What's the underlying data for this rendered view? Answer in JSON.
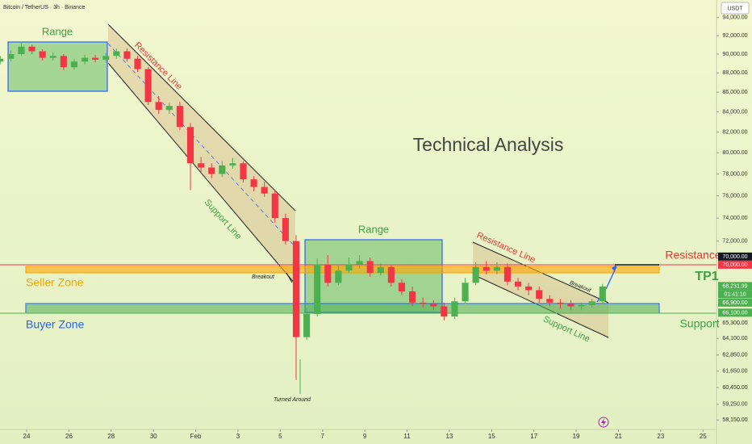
{
  "chart_data": {
    "type": "candlestick",
    "title": "Bitcoin / TetherUS · 3h · Binance",
    "currency": "USDT",
    "log_scale": true,
    "up_color": "#4caf50",
    "down_color": "#f23645",
    "ylim": [
      57500,
      96000
    ],
    "yticks": [
      {
        "value": 94000,
        "label": "94,000.00"
      },
      {
        "value": 92000,
        "label": "92,000.00"
      },
      {
        "value": 90000,
        "label": "90,000.00"
      },
      {
        "value": 88000,
        "label": "88,000.00"
      },
      {
        "value": 86000,
        "label": "86,000.00"
      },
      {
        "value": 84000,
        "label": "84,000.00"
      },
      {
        "value": 82000,
        "label": "82,000.00"
      },
      {
        "value": 80000,
        "label": "80,000.00"
      },
      {
        "value": 78000,
        "label": "78,000.00"
      },
      {
        "value": 76000,
        "label": "76,000.00"
      },
      {
        "value": 74000,
        "label": "74,000.00"
      },
      {
        "value": 72000,
        "label": "72,000.00"
      },
      {
        "value": 65300,
        "label": "65,300.00"
      },
      {
        "value": 64100,
        "label": "64,100.00"
      },
      {
        "value": 62850,
        "label": "62,850.00"
      },
      {
        "value": 61650,
        "label": "61,650.00"
      },
      {
        "value": 60450,
        "label": "60,450.00"
      },
      {
        "value": 59250,
        "label": "59,250.00"
      },
      {
        "value": 58150,
        "label": "58,150.00"
      }
    ],
    "xlim": [
      22.74,
      56.64
    ],
    "xticks": [
      24,
      26,
      28,
      30,
      {
        "value": 32,
        "label": "Feb"
      },
      {
        "value": 34,
        "label": "3"
      },
      {
        "value": 36,
        "label": "5"
      },
      {
        "value": 38,
        "label": "7"
      },
      {
        "value": 40,
        "label": "9"
      },
      {
        "value": 42,
        "label": "11"
      },
      {
        "value": 44,
        "label": "13"
      },
      {
        "value": 46,
        "label": "15"
      },
      {
        "value": 48,
        "label": "17"
      },
      {
        "value": 50,
        "label": "19"
      },
      {
        "value": 52,
        "label": "21"
      },
      {
        "value": 54,
        "label": "23"
      },
      {
        "value": 56,
        "label": "25"
      }
    ],
    "x": [
      22.75,
      23.25,
      23.75,
      24.25,
      24.75,
      25.25,
      25.75,
      26.25,
      26.75,
      27.25,
      27.75,
      28.25,
      28.75,
      29.25,
      29.75,
      30.25,
      30.75,
      31.25,
      31.75,
      32.25,
      32.75,
      33.25,
      33.75,
      34.25,
      34.75,
      35.25,
      35.75,
      36.25,
      36.75,
      37.25,
      37.75,
      38.25,
      38.75,
      39.25,
      39.75,
      40.25,
      40.75,
      41.25,
      41.75,
      42.25,
      42.75,
      43.25,
      43.75,
      44.25,
      44.75,
      45.25,
      45.75,
      46.25,
      46.75,
      47.25,
      47.75,
      48.25,
      48.75,
      49.25,
      49.75,
      50.25,
      50.75,
      51.25
    ],
    "open": [
      89200,
      89500,
      90000,
      90800,
      90300,
      89600,
      89800,
      88600,
      89200,
      89600,
      89400,
      89800,
      90300,
      89500,
      88400,
      85000,
      84200,
      84600,
      82500,
      79000,
      78600,
      78000,
      78800,
      79000,
      77500,
      76800,
      76200,
      74000,
      72000,
      64200,
      66000,
      70000,
      68500,
      69500,
      70000,
      70300,
      69300,
      69800,
      68500,
      67800,
      66900,
      66800,
      66600,
      65800,
      67000,
      68500,
      69800,
      69500,
      69800,
      68600,
      68200,
      67900,
      67200,
      66900,
      66800,
      66600,
      66700,
      67000
    ],
    "high": [
      89800,
      90400,
      91300,
      91000,
      90500,
      90200,
      90000,
      89500,
      89900,
      89900,
      90100,
      90600,
      90600,
      89800,
      88600,
      85600,
      84900,
      85000,
      82900,
      79600,
      79000,
      79200,
      79500,
      79200,
      77800,
      77300,
      76500,
      74400,
      72500,
      66500,
      70500,
      70800,
      70000,
      70600,
      70800,
      70600,
      70100,
      70000,
      68800,
      68200,
      67300,
      67100,
      66900,
      67300,
      68900,
      70200,
      70300,
      70200,
      70100,
      68900,
      68500,
      68200,
      67500,
      67200,
      67100,
      66900,
      67200,
      68400
    ],
    "low": [
      88900,
      89200,
      89800,
      90000,
      89300,
      89300,
      88300,
      88300,
      88900,
      89100,
      89100,
      89500,
      89200,
      88100,
      84700,
      83800,
      83800,
      82200,
      76500,
      78200,
      77600,
      77700,
      78500,
      77200,
      76400,
      75900,
      73600,
      71700,
      61000,
      64000,
      65800,
      68200,
      68300,
      69300,
      69700,
      69000,
      69100,
      68200,
      67500,
      66600,
      66500,
      66300,
      65500,
      65600,
      66800,
      68300,
      69200,
      69200,
      68300,
      67900,
      67500,
      66900,
      66600,
      66400,
      66300,
      66300,
      66500,
      66800
    ],
    "close": [
      89500,
      90000,
      90800,
      90300,
      89600,
      89800,
      88600,
      89200,
      89600,
      89400,
      89800,
      90300,
      89500,
      88400,
      85000,
      84200,
      84600,
      82500,
      79000,
      78600,
      78000,
      78800,
      79000,
      77500,
      76800,
      76200,
      74000,
      72000,
      64200,
      66000,
      70000,
      68500,
      69500,
      70000,
      70300,
      69300,
      69800,
      68500,
      67800,
      66900,
      66800,
      66600,
      65800,
      67000,
      68500,
      69800,
      69500,
      69800,
      68600,
      68200,
      67900,
      67200,
      66900,
      66800,
      66600,
      66700,
      67000,
      68200
    ],
    "price_labels": [
      {
        "value": 70000,
        "label": "70,000.00",
        "color": "#131722"
      },
      {
        "value": 70000,
        "label": "70,000.00",
        "color": "#f23645"
      },
      {
        "value": 68231.99,
        "label": "68,231.99",
        "color": "#4caf50"
      },
      {
        "value": 66900,
        "label": "66,900.00",
        "color": "#4caf50"
      },
      {
        "value": 66100,
        "label": "66,100.00",
        "color": "#4caf50"
      }
    ],
    "countdown": "01:41:10",
    "annotations": {
      "range_1": "Range",
      "range_2": "Range",
      "resistance_line_1": "Resistance Line",
      "resistance_line_2": "Resistance Line",
      "support_line_1": "Support Line",
      "support_line_2": "Support Line",
      "breakout_1": "Breakout",
      "breakout_2": "Breakout",
      "turned_around": "Turned Around",
      "heading": "Technical Analysis",
      "seller_zone": "Seller Zone",
      "buyer_zone": "Buyer Zone",
      "resistance": "Resistance",
      "support": "Support",
      "tp1": "TP1"
    }
  }
}
